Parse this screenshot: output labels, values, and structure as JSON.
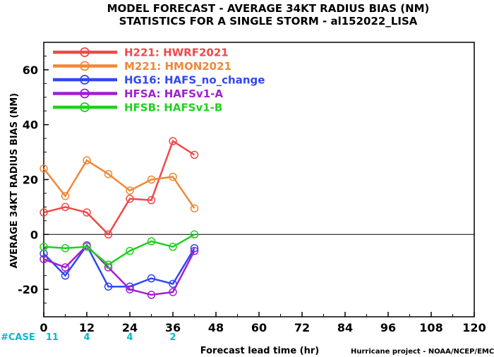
{
  "title_line1": "MODEL FORECAST - AVERAGE 34KT RADIUS BIAS (NM)",
  "title_line2": "STATISTICS FOR A SINGLE STORM - al152022_LISA",
  "credit": "Hurricane project - NOAA/NCEP/EMC",
  "case_label": "#CASE",
  "case_counts": [
    {
      "x": 0,
      "label": "11"
    },
    {
      "x": 12,
      "label": "4"
    },
    {
      "x": 24,
      "label": "4"
    },
    {
      "x": 36,
      "label": "2"
    }
  ],
  "chart_data": {
    "type": "line",
    "title": "MODEL FORECAST - AVERAGE 34KT RADIUS BIAS (NM)",
    "subtitle": "STATISTICS FOR A SINGLE STORM - al152022_LISA",
    "xlabel": "Forecast lead time (hr)",
    "ylabel": "AVERAGE 34KT RADIUS BIAS (NM)",
    "xlim": [
      0,
      120
    ],
    "ylim": [
      -30,
      70
    ],
    "xticks": [
      0,
      12,
      24,
      36,
      48,
      60,
      72,
      84,
      96,
      108,
      120
    ],
    "yticks": [
      -20,
      0,
      20,
      40,
      60
    ],
    "zero_line": true,
    "grid": false,
    "legend_position": "top-left",
    "x": [
      0,
      6,
      12,
      18,
      24,
      30,
      36,
      42
    ],
    "series": [
      {
        "name": "H221: HWRF2021",
        "color": "#f04848",
        "values": [
          8,
          10,
          8,
          0,
          13,
          12.5,
          34,
          29
        ]
      },
      {
        "name": "M221: HMON2021",
        "color": "#f08838",
        "values": [
          24,
          14,
          27,
          22,
          16,
          20,
          21,
          9.5
        ]
      },
      {
        "name": "HG16: HAFS_no_change",
        "color": "#3048f0",
        "values": [
          -7,
          -15,
          -4,
          -19,
          -19,
          -16,
          -18,
          -5
        ]
      },
      {
        "name": "HFSA: HAFSv1-A",
        "color": "#a020d0",
        "values": [
          -9,
          -12,
          -4,
          -12,
          -20,
          -22,
          -21,
          -6
        ]
      },
      {
        "name": "HFSB: HAFSv1-B",
        "color": "#20d020",
        "values": [
          -4.5,
          -5,
          -4.5,
          -11,
          -6,
          -2.5,
          -4.5,
          0
        ]
      }
    ]
  }
}
